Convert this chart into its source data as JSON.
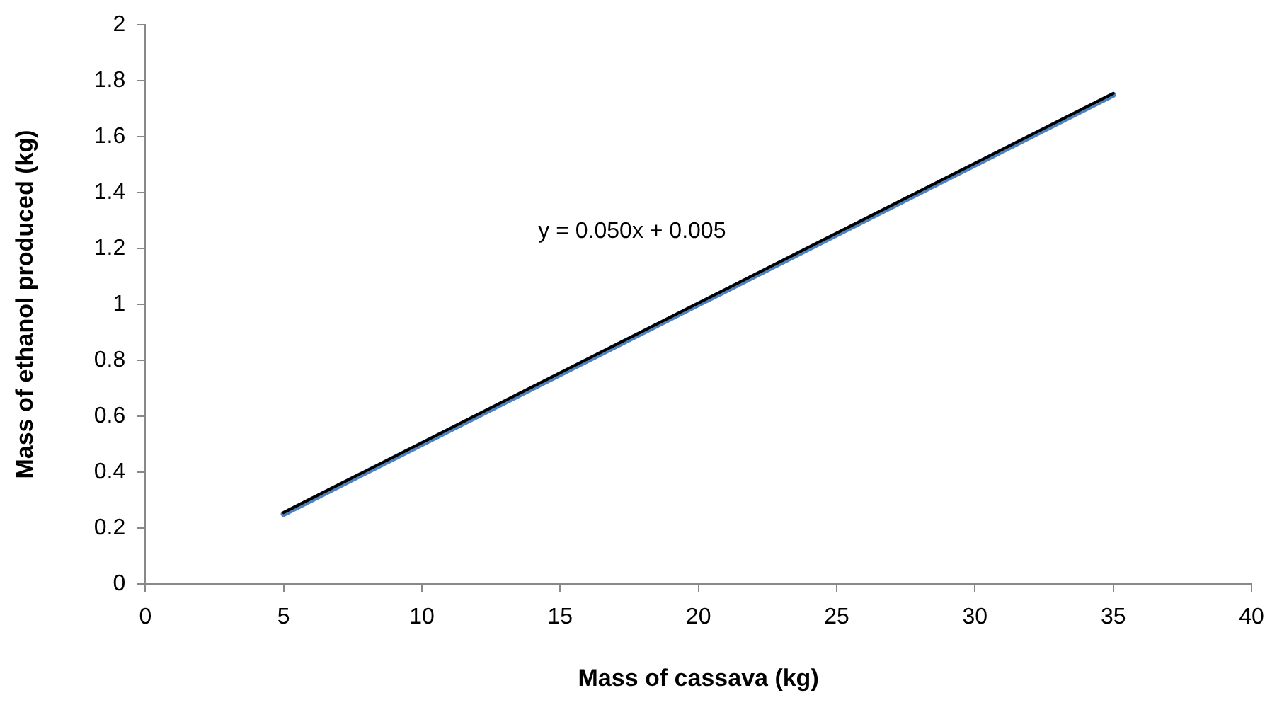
{
  "chart_data": {
    "type": "line",
    "xlabel": "Mass of cassava (kg)",
    "ylabel": "Mass of ethanol produced (kg)",
    "x": [
      5,
      10,
      15,
      20,
      25,
      30,
      35
    ],
    "series": [
      {
        "color": "#4f81bd",
        "values": [
          0.25,
          0.5,
          0.75,
          1.0,
          1.25,
          1.5,
          1.75
        ]
      },
      {
        "type": "line",
        "color": "#000000",
        "x": [
          5,
          35
        ],
        "values": [
          0.255,
          1.755
        ]
      }
    ],
    "xlim": [
      0,
      40
    ],
    "xticks": [
      0,
      5,
      10,
      15,
      20,
      25,
      30,
      35,
      40
    ],
    "ylim": [
      0,
      2
    ],
    "yticks": [
      0,
      0.2,
      0.4,
      0.6,
      0.8,
      1,
      1.2,
      1.4,
      1.6,
      1.8,
      2
    ],
    "grid": false,
    "legend": false,
    "marker": "none",
    "line_style": "solid",
    "annotations": [
      "y = 0.050x + 0.005"
    ]
  }
}
